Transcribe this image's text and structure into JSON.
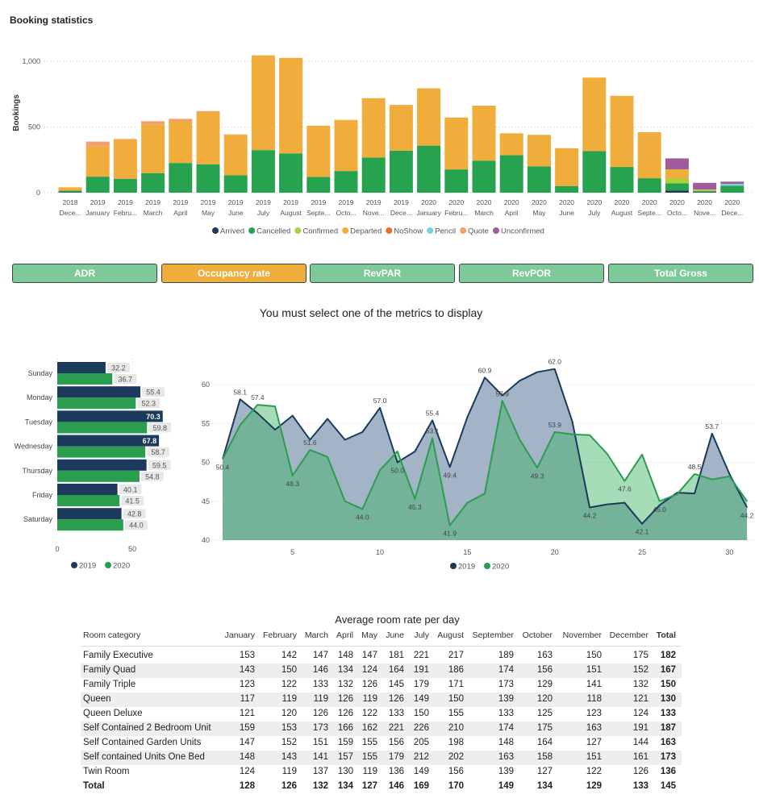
{
  "title": "Booking statistics",
  "colors": {
    "Arrived": "#1b3a5c",
    "Cancelled": "#27a34f",
    "Confirmed": "#a6d43a",
    "Departed": "#f0ad3c",
    "NoShow": "#e8702a",
    "Pencil": "#7fcfe0",
    "Quote": "#f2a06e",
    "Unconfirmed": "#a05c9a",
    "y2019": "#1b3a5c",
    "y2020": "#2a9d4e",
    "button": "#7dc99a",
    "button_active": "#f0ad3c"
  },
  "metric_buttons": [
    {
      "label": "ADR",
      "active": false
    },
    {
      "label": "Occupancy rate",
      "active": true
    },
    {
      "label": "RevPAR",
      "active": false
    },
    {
      "label": "RevPOR",
      "active": false
    },
    {
      "label": "Total Gross",
      "active": false
    }
  ],
  "message": "You must select one of the metrics to display",
  "chart_data": [
    {
      "type": "bar",
      "stacked": true,
      "ylabel": "Bookings",
      "ylim": [
        0,
        1100
      ],
      "yticks": [
        0,
        500,
        1000
      ],
      "ytick_labels": [
        "0",
        "500",
        "1,000"
      ],
      "grid": true,
      "legend": "bottom",
      "categories": [
        [
          "2018",
          "Dece..."
        ],
        [
          "2019",
          "January"
        ],
        [
          "2019",
          "Febru..."
        ],
        [
          "2019",
          "March"
        ],
        [
          "2019",
          "April"
        ],
        [
          "2019",
          "May"
        ],
        [
          "2019",
          "June"
        ],
        [
          "2019",
          "July"
        ],
        [
          "2019",
          "August"
        ],
        [
          "2019",
          "Septe..."
        ],
        [
          "2019",
          "Octo..."
        ],
        [
          "2019",
          "Nove..."
        ],
        [
          "2019",
          "Dece..."
        ],
        [
          "2020",
          "January"
        ],
        [
          "2020",
          "Febru..."
        ],
        [
          "2020",
          "March"
        ],
        [
          "2020",
          "April"
        ],
        [
          "2020",
          "May"
        ],
        [
          "2020",
          "June"
        ],
        [
          "2020",
          "July"
        ],
        [
          "2020",
          "August"
        ],
        [
          "2020",
          "Septe..."
        ],
        [
          "2020",
          "Octo..."
        ],
        [
          "2020",
          "Nove..."
        ],
        [
          "2020",
          "Dece..."
        ]
      ],
      "series": [
        {
          "name": "Arrived",
          "values": [
            4,
            0,
            0,
            0,
            0,
            0,
            0,
            0,
            0,
            0,
            0,
            0,
            0,
            0,
            0,
            0,
            0,
            0,
            0,
            0,
            0,
            0,
            16,
            4,
            0
          ]
        },
        {
          "name": "Cancelled",
          "values": [
            12,
            122,
            106,
            149,
            226,
            216,
            132,
            324,
            299,
            120,
            165,
            267,
            320,
            358,
            177,
            244,
            285,
            200,
            51,
            316,
            196,
            110,
            56,
            8,
            53
          ]
        },
        {
          "name": "Confirmed",
          "values": [
            0,
            0,
            0,
            0,
            0,
            0,
            0,
            0,
            0,
            0,
            0,
            0,
            0,
            0,
            0,
            0,
            0,
            0,
            0,
            0,
            0,
            0,
            35,
            8,
            0
          ]
        },
        {
          "name": "Departed",
          "values": [
            25,
            230,
            298,
            371,
            320,
            397,
            308,
            721,
            727,
            389,
            389,
            452,
            348,
            436,
            395,
            418,
            167,
            240,
            287,
            560,
            541,
            350,
            71,
            4,
            0
          ]
        },
        {
          "name": "NoShow",
          "values": [
            0,
            0,
            0,
            0,
            0,
            0,
            0,
            0,
            0,
            0,
            0,
            0,
            0,
            0,
            0,
            0,
            0,
            0,
            0,
            0,
            0,
            0,
            0,
            0,
            0
          ]
        },
        {
          "name": "Pencil",
          "values": [
            0,
            0,
            0,
            0,
            0,
            0,
            0,
            0,
            0,
            0,
            0,
            0,
            0,
            0,
            0,
            0,
            0,
            0,
            0,
            0,
            0,
            0,
            0,
            0,
            14
          ]
        },
        {
          "name": "Quote",
          "values": [
            0,
            37,
            5,
            24,
            16,
            8,
            4,
            0,
            0,
            0,
            0,
            0,
            0,
            0,
            0,
            0,
            0,
            0,
            0,
            0,
            0,
            0,
            0,
            0,
            0
          ]
        },
        {
          "name": "Unconfirmed",
          "values": [
            0,
            0,
            0,
            0,
            0,
            0,
            0,
            0,
            0,
            0,
            0,
            0,
            0,
            0,
            0,
            0,
            0,
            0,
            0,
            0,
            0,
            0,
            83,
            51,
            17
          ]
        }
      ]
    },
    {
      "type": "bar",
      "orientation": "horizontal",
      "xlim": [
        0,
        75
      ],
      "xticks": [
        0,
        50
      ],
      "legend": "bottom",
      "categories": [
        "Sunday",
        "Monday",
        "Tuesday",
        "Wednesday",
        "Thursday",
        "Friday",
        "Saturday"
      ],
      "series": [
        {
          "name": "2019",
          "values": [
            32.2,
            55.4,
            70.3,
            67.8,
            59.5,
            40.1,
            42.8
          ]
        },
        {
          "name": "2020",
          "values": [
            36.7,
            52.3,
            59.8,
            58.7,
            54.8,
            41.5,
            44.0
          ]
        }
      ]
    },
    {
      "type": "area",
      "xlim": [
        1,
        31
      ],
      "ylim": [
        40,
        63
      ],
      "xticks": [
        5,
        10,
        15,
        20,
        25,
        30
      ],
      "yticks": [
        40,
        45,
        50,
        55,
        60
      ],
      "grid": true,
      "legend": "bottom",
      "x": [
        1,
        2,
        3,
        4,
        5,
        6,
        7,
        8,
        9,
        10,
        11,
        12,
        13,
        14,
        15,
        16,
        17,
        18,
        19,
        20,
        21,
        22,
        23,
        24,
        25,
        26,
        27,
        28,
        29,
        30,
        31
      ],
      "series": [
        {
          "name": "2019",
          "values": [
            50.4,
            58.1,
            56.3,
            54.2,
            56.0,
            52.9,
            55.6,
            52.9,
            53.9,
            57.0,
            50.0,
            51.4,
            55.4,
            49.4,
            55.8,
            60.9,
            58.6,
            60.5,
            61.6,
            62.0,
            55.3,
            44.2,
            44.6,
            44.8,
            42.1,
            44.5,
            46.1,
            46.0,
            53.7,
            48.5,
            44.2
          ],
          "labeled_days": [
            2,
            10,
            11,
            13,
            14,
            16,
            20,
            22,
            25,
            29,
            31
          ]
        },
        {
          "name": "2020",
          "values": [
            50.4,
            54.8,
            57.4,
            57.2,
            48.3,
            51.6,
            50.7,
            45.0,
            44.0,
            49.0,
            51.4,
            45.3,
            53.1,
            41.9,
            44.8,
            46.0,
            57.9,
            52.9,
            49.3,
            53.9,
            53.6,
            53.5,
            51.1,
            47.6,
            51.0,
            45.0,
            45.9,
            48.5,
            47.8,
            48.2,
            45.0
          ],
          "labeled_days": [
            1,
            3,
            5,
            6,
            9,
            12,
            13,
            14,
            17,
            19,
            20,
            24,
            26,
            28
          ]
        }
      ]
    },
    {
      "type": "table",
      "title": "Average room rate per day",
      "columns": [
        "Room category",
        "January",
        "February",
        "March",
        "April",
        "May",
        "June",
        "July",
        "August",
        "September",
        "October",
        "November",
        "December",
        "Total"
      ],
      "rows": [
        [
          "Family Executive",
          "153",
          "142",
          "147",
          "148",
          "147",
          "181",
          "221",
          "217",
          "189",
          "163",
          "150",
          "175",
          "182"
        ],
        [
          "Family Quad",
          "143",
          "150",
          "146",
          "134",
          "124",
          "164",
          "191",
          "186",
          "174",
          "156",
          "151",
          "152",
          "167"
        ],
        [
          "Family Triple",
          "123",
          "122",
          "133",
          "132",
          "126",
          "145",
          "179",
          "171",
          "173",
          "129",
          "141",
          "132",
          "150"
        ],
        [
          "Queen",
          "117",
          "119",
          "119",
          "126",
          "119",
          "126",
          "149",
          "150",
          "139",
          "120",
          "118",
          "121",
          "130"
        ],
        [
          "Queen Deluxe",
          "121",
          "120",
          "126",
          "126",
          "122",
          "133",
          "150",
          "155",
          "133",
          "125",
          "123",
          "124",
          "133"
        ],
        [
          "Self Contained 2 Bedroom Unit",
          "159",
          "153",
          "173",
          "166",
          "162",
          "221",
          "226",
          "210",
          "174",
          "175",
          "163",
          "191",
          "187"
        ],
        [
          "Self Contained Garden Units",
          "147",
          "152",
          "151",
          "159",
          "155",
          "156",
          "205",
          "198",
          "148",
          "164",
          "127",
          "144",
          "163"
        ],
        [
          "Self contained Units One Bed",
          "148",
          "143",
          "141",
          "157",
          "155",
          "179",
          "212",
          "202",
          "163",
          "158",
          "151",
          "161",
          "173"
        ],
        [
          "Twin Room",
          "124",
          "119",
          "137",
          "130",
          "119",
          "136",
          "149",
          "156",
          "139",
          "127",
          "122",
          "126",
          "136"
        ]
      ],
      "total_row": [
        "Total",
        "128",
        "126",
        "132",
        "134",
        "127",
        "146",
        "169",
        "170",
        "149",
        "134",
        "129",
        "133",
        "145"
      ]
    }
  ]
}
